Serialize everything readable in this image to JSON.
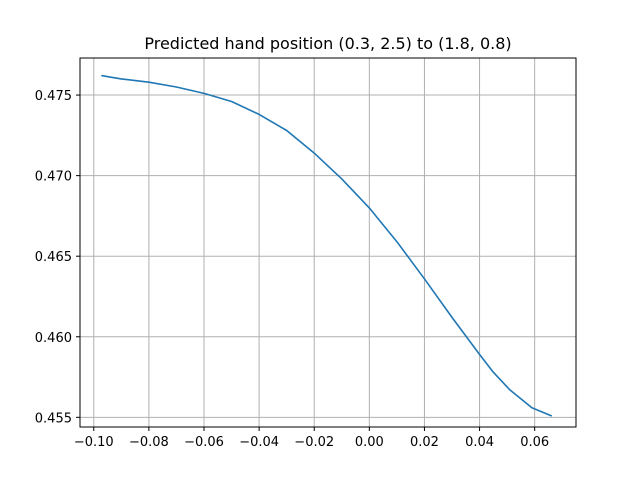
{
  "chart_data": {
    "type": "line",
    "title": "Predicted hand position (0.3, 2.5) to (1.8, 0.8)",
    "xlabel": "",
    "ylabel": "",
    "xlim": [
      -0.105,
      0.075
    ],
    "ylim": [
      0.4544,
      0.4773
    ],
    "x_ticks": [
      -0.1,
      -0.08,
      -0.06,
      -0.04,
      -0.02,
      0.0,
      0.02,
      0.04,
      0.06
    ],
    "x_tick_labels": [
      "−0.10",
      "−0.08",
      "−0.06",
      "−0.04",
      "−0.02",
      "0.00",
      "0.02",
      "0.04",
      "0.06"
    ],
    "y_ticks": [
      0.455,
      0.46,
      0.465,
      0.47,
      0.475
    ],
    "y_tick_labels": [
      "0.455",
      "0.460",
      "0.465",
      "0.470",
      "0.475"
    ],
    "grid": true,
    "line_color": "#1f77b4",
    "grid_color": "#b0b0b0",
    "series": [
      {
        "x": [
          -0.097,
          -0.09,
          -0.08,
          -0.07,
          -0.06,
          -0.05,
          -0.04,
          -0.03,
          -0.02,
          -0.01,
          0.0,
          0.01,
          0.02,
          0.03,
          0.04,
          0.045,
          0.051,
          0.059,
          0.066
        ],
        "y": [
          0.4762,
          0.476,
          0.4758,
          0.4755,
          0.4751,
          0.4746,
          0.4738,
          0.4728,
          0.4714,
          0.4698,
          0.468,
          0.4659,
          0.4636,
          0.4612,
          0.4589,
          0.4578,
          0.4567,
          0.4556,
          0.4551
        ]
      }
    ]
  }
}
